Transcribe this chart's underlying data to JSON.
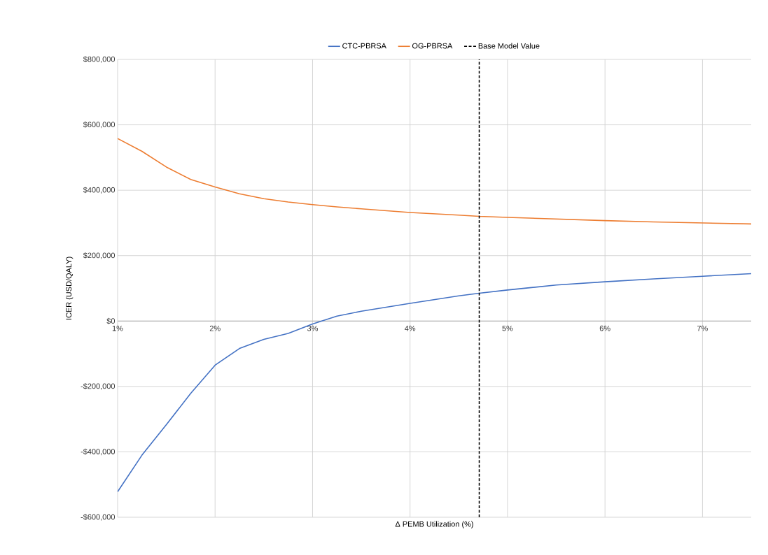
{
  "chart_data": {
    "type": "line",
    "xlabel": "Δ PEMB Utilization (%)",
    "ylabel": "ICER (USD/QALY)",
    "x": [
      1,
      1.25,
      1.5,
      1.75,
      2,
      2.25,
      2.5,
      2.75,
      3,
      3.25,
      3.5,
      4,
      4.5,
      4.71,
      5,
      5.5,
      6,
      6.5,
      7,
      7.5
    ],
    "series": [
      {
        "name": "CTC-PBRSA",
        "color": "#4472c4",
        "values": [
          -522000,
          -410000,
          -317000,
          -221000,
          -135000,
          -84000,
          -56000,
          -38000,
          -9000,
          15000,
          30000,
          54000,
          77000,
          85000,
          95000,
          110000,
          120000,
          129000,
          137000,
          145000
        ]
      },
      {
        "name": "OG-PBRSA",
        "color": "#ed7d31",
        "values": [
          558000,
          519000,
          471000,
          433000,
          410000,
          389000,
          374000,
          364000,
          356000,
          349000,
          343000,
          332000,
          324000,
          320000,
          317000,
          312000,
          307000,
          303000,
          300000,
          297000
        ]
      }
    ],
    "ref_lines": [
      {
        "axis": "x",
        "value": 4.71,
        "label": "Base Model Value",
        "color": "#000000",
        "line_style": "dashed"
      }
    ],
    "xlim": [
      1,
      7.5
    ],
    "ylim": [
      -600000,
      800000
    ],
    "xticks": [
      {
        "value": 1,
        "label": "1%"
      },
      {
        "value": 2,
        "label": "2%"
      },
      {
        "value": 3,
        "label": "3%"
      },
      {
        "value": 4,
        "label": "4%"
      },
      {
        "value": 5,
        "label": "5%"
      },
      {
        "value": 6,
        "label": "6%"
      },
      {
        "value": 7,
        "label": "7%"
      }
    ],
    "yticks": [
      {
        "value": -600000,
        "label": "-$600,000"
      },
      {
        "value": -400000,
        "label": "-$400,000"
      },
      {
        "value": -200000,
        "label": "-$200,000"
      },
      {
        "value": 0,
        "label": "$0"
      },
      {
        "value": 200000,
        "label": "$200,000"
      },
      {
        "value": 400000,
        "label": "$400,000"
      },
      {
        "value": 600000,
        "label": "$600,000"
      },
      {
        "value": 800000,
        "label": "$800,000"
      }
    ],
    "grid": true,
    "legend": "top",
    "marker": "none",
    "line_style": "solid"
  }
}
